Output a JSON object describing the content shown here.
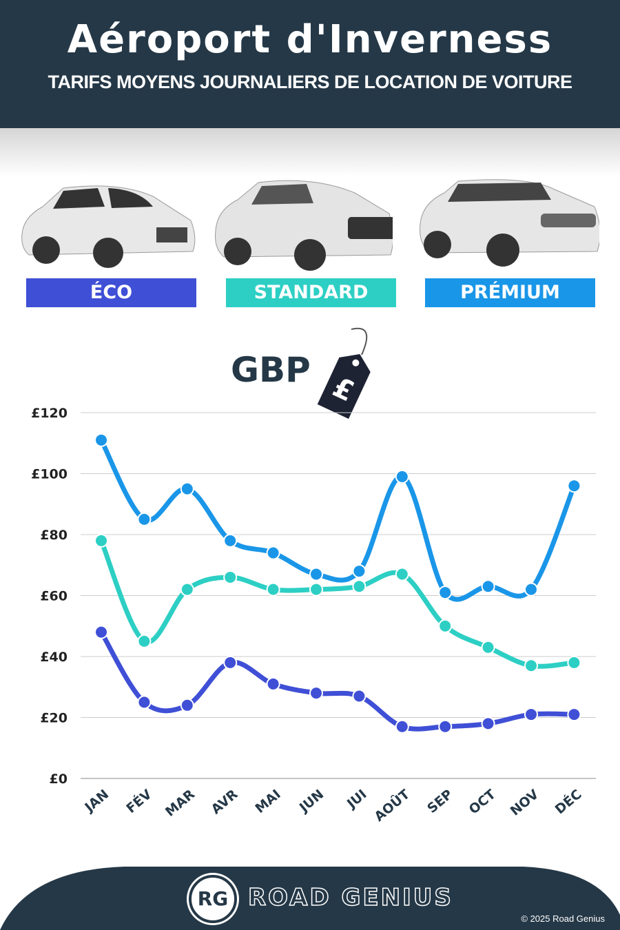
{
  "header": {
    "title": "Aéroport d'Inverness",
    "subtitle": "TARIFS MOYENS JOURNALIERS DE LOCATION DE VOITURE"
  },
  "categories": [
    {
      "label": "ÉCO",
      "color": "#3f4fd6"
    },
    {
      "label": "STANDARD",
      "color": "#2dcfc4"
    },
    {
      "label": "PRÉMIUM",
      "color": "#1a96e8"
    }
  ],
  "currency": {
    "label": "GBP",
    "symbol": "£"
  },
  "chart_data": {
    "type": "line",
    "categories": [
      "JAN",
      "FÉV",
      "MAR",
      "AVR",
      "MAI",
      "JUN",
      "JUI",
      "AOÛT",
      "SEP",
      "OCT",
      "NOV",
      "DÉC"
    ],
    "ylim": [
      0,
      120
    ],
    "yticks": [
      "£0",
      "£20",
      "£40",
      "£60",
      "£80",
      "£100",
      "£120"
    ],
    "grid": true,
    "series": [
      {
        "name": "PRÉMIUM",
        "color": "#1a96e8",
        "values": [
          111,
          85,
          95,
          78,
          74,
          67,
          68,
          99,
          61,
          63,
          62,
          96
        ]
      },
      {
        "name": "STANDARD",
        "color": "#2dcfc4",
        "values": [
          78,
          45,
          62,
          66,
          62,
          62,
          63,
          67,
          50,
          43,
          37,
          38
        ]
      },
      {
        "name": "ÉCO",
        "color": "#3f4fd6",
        "values": [
          48,
          25,
          24,
          38,
          31,
          28,
          27,
          17,
          17,
          18,
          21,
          21
        ]
      }
    ]
  },
  "footer": {
    "logo": "RG",
    "brand": "ROAD GENIUS",
    "copyright": "© 2025 Road Genius"
  }
}
